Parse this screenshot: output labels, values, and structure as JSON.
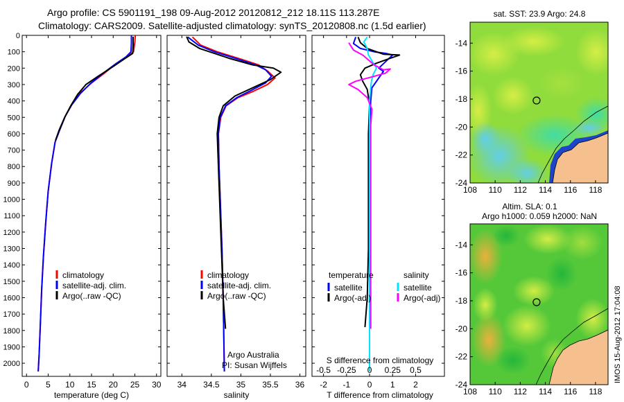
{
  "header": {
    "line1": "Argo profile: CS 5901191_198 09-Aug-2012 20120812_212 18.11S 113.287E",
    "line2": "Climatology: CARS2009. Satellite-adjusted climatology: synTS_20120808.nc (1.5d earlier)"
  },
  "colors": {
    "climatology": "#ff0000",
    "satellite": "#0000ff",
    "argo": "#000000",
    "satellite_salinity": "#00e5ff",
    "argo_salinity": "#ff00ff",
    "land": "#f5c08e",
    "float_marker": "#000000"
  },
  "side_note": "IMOS 15-Aug-2012 17:04:08",
  "chart_data": [
    {
      "type": "line",
      "id": "temperature",
      "xlabel": "temperature (deg C)",
      "ylabel": "",
      "xlim": [
        -1,
        31
      ],
      "ylim": [
        2080,
        0
      ],
      "xticks": [
        0,
        5,
        10,
        15,
        20,
        25,
        30
      ],
      "yticks": [
        0,
        100,
        200,
        300,
        400,
        500,
        600,
        700,
        800,
        900,
        1000,
        1100,
        1200,
        1300,
        1400,
        1500,
        1600,
        1700,
        1800,
        1900,
        2000
      ],
      "legend": [
        "climatology",
        "satellite-adj. clim.",
        "Argo(..raw -QC)"
      ],
      "legend_position": "lower-right",
      "series": [
        {
          "name": "climatology",
          "color": "#ff0000",
          "points": [
            [
              25.1,
              0
            ],
            [
              25.0,
              40
            ],
            [
              24.7,
              100
            ],
            [
              23.3,
              130
            ],
            [
              20.8,
              170
            ],
            [
              18.0,
              230
            ],
            [
              15.0,
              290
            ],
            [
              12.5,
              350
            ],
            [
              10.5,
              420
            ],
            [
              9.0,
              490
            ],
            [
              7.6,
              580
            ],
            [
              6.6,
              650
            ],
            [
              5.8,
              780
            ],
            [
              5.0,
              950
            ],
            [
              4.4,
              1150
            ],
            [
              3.9,
              1350
            ],
            [
              3.5,
              1550
            ],
            [
              3.2,
              1750
            ],
            [
              2.9,
              1950
            ],
            [
              2.7,
              2050
            ]
          ]
        },
        {
          "name": "satellite-adj. clim.",
          "color": "#0000ff",
          "points": [
            [
              24.2,
              0
            ],
            [
              24.2,
              45
            ],
            [
              24.1,
              100
            ],
            [
              23.0,
              130
            ],
            [
              20.5,
              175
            ],
            [
              17.5,
              235
            ],
            [
              14.7,
              295
            ],
            [
              12.4,
              355
            ],
            [
              10.4,
              425
            ],
            [
              8.9,
              495
            ],
            [
              7.6,
              580
            ],
            [
              6.6,
              650
            ],
            [
              5.8,
              780
            ],
            [
              5.0,
              950
            ],
            [
              4.4,
              1150
            ],
            [
              3.9,
              1350
            ],
            [
              3.5,
              1550
            ],
            [
              3.2,
              1750
            ],
            [
              2.9,
              1950
            ],
            [
              2.7,
              2050
            ]
          ]
        },
        {
          "name": "Argo(..raw -QC)",
          "color": "#000000",
          "points": [
            [
              24.6,
              8
            ],
            [
              24.6,
              60
            ],
            [
              24.5,
              110
            ],
            [
              22.8,
              140
            ],
            [
              20.0,
              190
            ],
            [
              16.5,
              250
            ],
            [
              13.7,
              300
            ],
            [
              11.8,
              360
            ],
            [
              10.2,
              430
            ],
            [
              8.8,
              500
            ],
            [
              7.5,
              580
            ],
            [
              6.7,
              640
            ]
          ]
        }
      ]
    },
    {
      "type": "line",
      "id": "salinity",
      "xlabel": "salinity",
      "ylabel": "",
      "xlim": [
        33.75,
        36.1
      ],
      "ylim": [
        2080,
        0
      ],
      "xticks": [
        34,
        34.5,
        35,
        35.5,
        36
      ],
      "legend": [
        "climatology",
        "satellite-adj. clim.",
        "Argo(..raw -QC)"
      ],
      "legend_position": "lower-right",
      "annotations": [
        "Argo Australia",
        "PI: Susan Wijffels"
      ],
      "series": [
        {
          "name": "climatology",
          "color": "#ff0000",
          "points": [
            [
              34.18,
              10
            ],
            [
              34.32,
              60
            ],
            [
              34.6,
              100
            ],
            [
              35.0,
              145
            ],
            [
              35.3,
              180
            ],
            [
              35.46,
              220
            ],
            [
              35.58,
              260
            ],
            [
              35.45,
              300
            ],
            [
              35.22,
              340
            ],
            [
              34.95,
              380
            ],
            [
              34.75,
              430
            ],
            [
              34.66,
              500
            ],
            [
              34.62,
              600
            ],
            [
              34.63,
              800
            ],
            [
              34.65,
              1000
            ],
            [
              34.68,
              1300
            ],
            [
              34.7,
              1600
            ],
            [
              34.72,
              2050
            ]
          ]
        },
        {
          "name": "satellite-adj. clim.",
          "color": "#0000ff",
          "points": [
            [
              34.1,
              10
            ],
            [
              34.28,
              60
            ],
            [
              34.55,
              100
            ],
            [
              34.95,
              145
            ],
            [
              35.25,
              180
            ],
            [
              35.42,
              210
            ],
            [
              35.52,
              250
            ],
            [
              35.42,
              290
            ],
            [
              35.18,
              335
            ],
            [
              34.93,
              380
            ],
            [
              34.74,
              430
            ],
            [
              34.65,
              500
            ],
            [
              34.62,
              600
            ],
            [
              34.63,
              800
            ],
            [
              34.65,
              1000
            ],
            [
              34.68,
              1300
            ],
            [
              34.7,
              1600
            ],
            [
              34.72,
              2050
            ]
          ]
        },
        {
          "name": "Argo(..raw -QC)",
          "color": "#000000",
          "points": [
            [
              34.08,
              8
            ],
            [
              34.12,
              40
            ],
            [
              34.3,
              80
            ],
            [
              34.8,
              140
            ],
            [
              35.2,
              180
            ],
            [
              35.55,
              200
            ],
            [
              35.68,
              225
            ],
            [
              35.5,
              270
            ],
            [
              35.2,
              320
            ],
            [
              34.9,
              370
            ],
            [
              34.7,
              430
            ],
            [
              34.63,
              500
            ],
            [
              34.6,
              600
            ],
            [
              34.62,
              800
            ],
            [
              34.64,
              1000
            ],
            [
              34.67,
              1300
            ],
            [
              34.7,
              1600
            ],
            [
              34.74,
              1790
            ]
          ]
        }
      ]
    },
    {
      "type": "line",
      "id": "differences",
      "xlabel": "T difference from climatology",
      "xlabel_top": "S difference from climatology",
      "ylabel": "",
      "xlim": [
        -2.5,
        3.25
      ],
      "ylim": [
        2080,
        0
      ],
      "xticks": [
        -2,
        -1,
        0,
        1,
        2
      ],
      "top_axis": {
        "ticks": [
          -0.5,
          -0.25,
          0,
          0.25,
          0.5
        ],
        "scale": 4
      },
      "legend": [
        "temperature",
        "satellite",
        "Argo(-adj)",
        "salinity",
        "satellite",
        "Argo(-adj)"
      ],
      "legend_position": "lower-center",
      "series": [
        {
          "name": "satellite",
          "color": "#0000ff",
          "points": [
            [
              -0.6,
              10
            ],
            [
              -0.7,
              50
            ],
            [
              -0.4,
              80
            ],
            [
              0.2,
              100
            ],
            [
              0.7,
              110
            ],
            [
              1.0,
              120
            ],
            [
              0.7,
              160
            ],
            [
              0.4,
              200
            ],
            [
              0.6,
              220
            ],
            [
              0.4,
              260
            ],
            [
              0.1,
              320
            ],
            [
              0.05,
              400
            ],
            [
              0.0,
              600
            ],
            [
              0.0,
              1000
            ],
            [
              0.0,
              2050
            ]
          ]
        },
        {
          "name": "Argo(-adj)",
          "color": "#000000",
          "points": [
            [
              -0.5,
              10
            ],
            [
              -0.4,
              45
            ],
            [
              -0.1,
              80
            ],
            [
              0.3,
              100
            ],
            [
              0.6,
              115
            ],
            [
              1.3,
              120
            ],
            [
              0.9,
              140
            ],
            [
              0.3,
              170
            ],
            [
              -0.2,
              200
            ],
            [
              -0.4,
              240
            ],
            [
              -0.3,
              280
            ],
            [
              -0.1,
              330
            ],
            [
              0.0,
              420
            ],
            [
              -0.05,
              600
            ],
            [
              -0.05,
              900
            ],
            [
              -0.05,
              1300
            ],
            [
              -0.1,
              1600
            ],
            [
              -0.2,
              1780
            ]
          ]
        },
        {
          "name": "satellite",
          "color": "#00e5ff",
          "points": [
            [
              -0.1,
              10
            ],
            [
              -0.25,
              40
            ],
            [
              -0.1,
              80
            ],
            [
              -0.05,
              120
            ],
            [
              0.12,
              160
            ],
            [
              0.3,
              200
            ],
            [
              0.15,
              240
            ],
            [
              0.08,
              280
            ],
            [
              0.05,
              320
            ],
            [
              0.0,
              400
            ],
            [
              0.0,
              700
            ],
            [
              0.0,
              1000
            ],
            [
              0.0,
              2050
            ]
          ]
        },
        {
          "name": "Argo(-adj)",
          "color": "#ff00ff",
          "points": [
            [
              -0.9,
              45
            ],
            [
              -0.7,
              90
            ],
            [
              -0.3,
              120
            ],
            [
              0.2,
              180
            ],
            [
              0.6,
              210
            ],
            [
              0.9,
              205
            ],
            [
              0.7,
              230
            ],
            [
              0.2,
              250
            ],
            [
              -0.6,
              280
            ],
            [
              -0.9,
              300
            ],
            [
              -0.5,
              330
            ],
            [
              -0.1,
              380
            ],
            [
              0.1,
              450
            ],
            [
              0.05,
              550
            ],
            [
              0.05,
              800
            ],
            [
              0.05,
              1200
            ],
            [
              0.05,
              1500
            ],
            [
              0.05,
              1790
            ]
          ]
        }
      ]
    },
    {
      "type": "heatmap",
      "id": "sst-map",
      "title": "sat. SST: 23.9  Argo: 24.8",
      "xlim": [
        108,
        119
      ],
      "ylim": [
        -24,
        -12.5
      ],
      "xticks": [
        108,
        110,
        112,
        114,
        116,
        118
      ],
      "yticks": [
        -24,
        -22,
        -20,
        -18,
        -16,
        -14
      ],
      "marker": {
        "lon": 113.3,
        "lat": -18.1
      }
    },
    {
      "type": "heatmap",
      "id": "sla-map",
      "title": "Altim. SLA: 0.1",
      "subtitle": "Argo h1000: 0.059 h2000: NaN",
      "xlim": [
        108,
        119
      ],
      "ylim": [
        -24,
        -12.5
      ],
      "xticks": [
        108,
        110,
        112,
        114,
        116,
        118
      ],
      "yticks": [
        -24,
        -22,
        -20,
        -18,
        -16,
        -14
      ],
      "marker": {
        "lon": 113.3,
        "lat": -18.1
      }
    }
  ]
}
